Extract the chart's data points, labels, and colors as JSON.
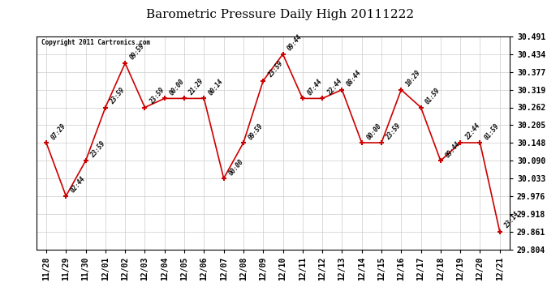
{
  "title": "Barometric Pressure Daily High 20111222",
  "copyright": "Copyright 2011 Cartronics.com",
  "x_labels": [
    "11/28",
    "11/29",
    "11/30",
    "12/01",
    "12/02",
    "12/03",
    "12/04",
    "12/05",
    "12/06",
    "12/07",
    "12/08",
    "12/09",
    "12/10",
    "12/11",
    "12/12",
    "12/13",
    "12/14",
    "12/15",
    "12/16",
    "12/17",
    "12/18",
    "12/19",
    "12/20",
    "12/21"
  ],
  "y_values": [
    30.148,
    29.976,
    30.09,
    30.262,
    30.405,
    30.262,
    30.291,
    30.291,
    30.291,
    30.033,
    30.148,
    30.348,
    30.434,
    30.291,
    30.291,
    30.319,
    30.148,
    30.148,
    30.319,
    30.262,
    30.09,
    30.148,
    30.148,
    29.861
  ],
  "time_labels": [
    "07:29",
    "02:44",
    "23:59",
    "23:59",
    "09:59",
    "23:59",
    "00:00",
    "21:29",
    "00:14",
    "00:00",
    "09:59",
    "23:59",
    "09:44",
    "07:44",
    "22:44",
    "08:44",
    "00:00",
    "23:59",
    "10:29",
    "01:59",
    "09:44",
    "22:44",
    "01:59",
    "23:14"
  ],
  "ylim_min": 29.804,
  "ylim_max": 30.491,
  "yticks": [
    29.804,
    29.861,
    29.918,
    29.976,
    30.033,
    30.09,
    30.148,
    30.205,
    30.262,
    30.319,
    30.377,
    30.434,
    30.491
  ],
  "line_color": "#cc0000",
  "marker_color": "#cc0000",
  "bg_color": "#ffffff",
  "grid_color": "#cccccc",
  "title_fontsize": 11,
  "tick_fontsize": 7,
  "annotation_fontsize": 5.5
}
